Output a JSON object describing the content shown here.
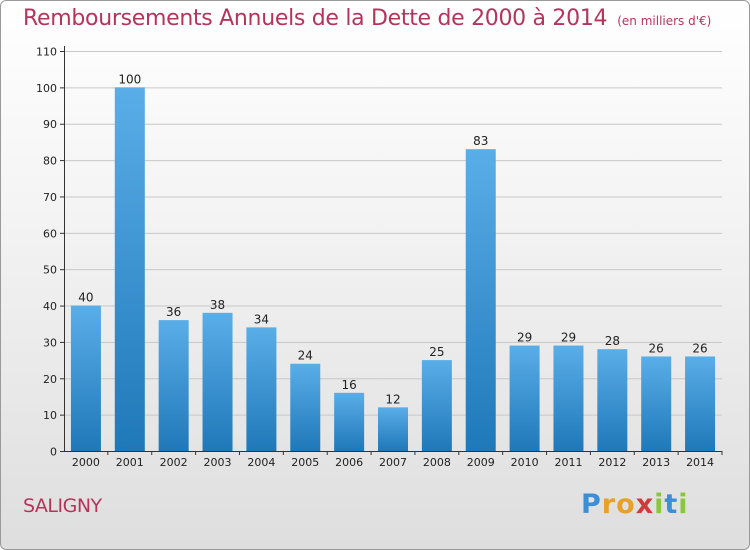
{
  "title": "Remboursements Annuels de la Dette de 2000 à 2014",
  "unit_note": "(en milliers d'€)",
  "commune": "SALIGNY",
  "logo": {
    "text": "Proxiti",
    "letters": [
      "P",
      "r",
      "o",
      "x",
      "i",
      "t",
      "i"
    ],
    "colors": [
      "#3a8fd6",
      "#e8a02a",
      "#e8a02a",
      "#d23a3a",
      "#8cc63f",
      "#3a8fd6",
      "#8cc63f"
    ]
  },
  "colors": {
    "title": "#b5345c",
    "bar_top": "#5aaee8",
    "bar_bottom": "#1f78b8",
    "grid": "#c8c8c8"
  },
  "chart_data": {
    "type": "bar",
    "title": "Remboursements Annuels de la Dette de 2000 à 2014",
    "unit": "(en milliers d'€)",
    "categories": [
      "2000",
      "2001",
      "2002",
      "2003",
      "2004",
      "2005",
      "2006",
      "2007",
      "2008",
      "2009",
      "2010",
      "2011",
      "2012",
      "2013",
      "2014"
    ],
    "values": [
      40,
      100,
      36,
      38,
      34,
      24,
      16,
      12,
      25,
      83,
      29,
      29,
      28,
      26,
      26
    ],
    "yticks": [
      0,
      10,
      20,
      30,
      40,
      50,
      60,
      70,
      80,
      90,
      100,
      110
    ],
    "ylim": [
      0,
      110
    ],
    "xlabel": "",
    "ylabel": "",
    "grid": true,
    "data_labels": true
  }
}
